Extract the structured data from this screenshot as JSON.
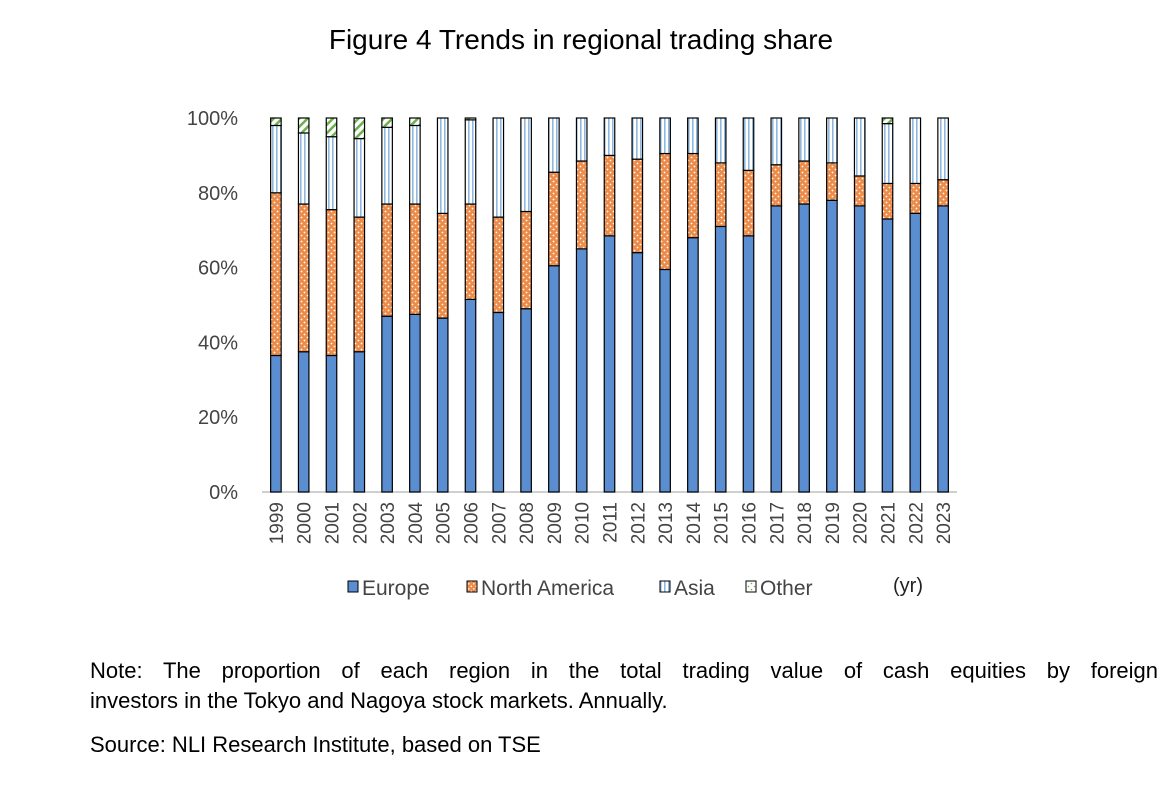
{
  "title": "Figure 4 Trends in regional trading share",
  "note": {
    "line1": "Note: The proportion of each region in the total trading value of cash equities by foreign",
    "line2": "investors in the Tokyo and Nagoya stock markets. Annually."
  },
  "source": "Source: NLI Research Institute, based on TSE",
  "colors": {
    "europe": "#5b8ed0",
    "north_america": "#ec8c4a",
    "asia": "#9fc6ea",
    "other": "#6ab04c"
  },
  "chart_data": {
    "type": "bar",
    "stacked": true,
    "percent": true,
    "title": "Figure 4 Trends in regional trading share",
    "x_unit_label": "(yr)",
    "ylim": [
      0,
      100
    ],
    "yticks": [
      "0%",
      "20%",
      "40%",
      "60%",
      "80%",
      "100%"
    ],
    "categories": [
      "1999",
      "2000",
      "2001",
      "2002",
      "2003",
      "2004",
      "2005",
      "2006",
      "2007",
      "2008",
      "2009",
      "2010",
      "2011",
      "2012",
      "2013",
      "2014",
      "2015",
      "2016",
      "2017",
      "2018",
      "2019",
      "2020",
      "2021",
      "2022",
      "2023"
    ],
    "legend_position": "bottom",
    "series": [
      {
        "name": "Europe",
        "key": "europe",
        "values": [
          36.5,
          37.5,
          36.5,
          37.5,
          47,
          47.5,
          46.5,
          51.5,
          48,
          49,
          60.5,
          65,
          68.5,
          64,
          59.5,
          68,
          71,
          68.5,
          76.5,
          77,
          78,
          76.5,
          73,
          74.5,
          76.5
        ]
      },
      {
        "name": "North America",
        "key": "north_america",
        "values": [
          43.5,
          39.5,
          39,
          36,
          30,
          29.5,
          28,
          25.5,
          25.5,
          26,
          25,
          23.5,
          21.5,
          25,
          31,
          22.5,
          17,
          17.5,
          11,
          11.5,
          10,
          8,
          9.5,
          8,
          7
        ]
      },
      {
        "name": "Asia",
        "key": "asia",
        "values": [
          18,
          19,
          19.5,
          21,
          20.5,
          21,
          25.5,
          22.5,
          26.5,
          25,
          14.5,
          11.5,
          10,
          11,
          9.5,
          9.5,
          12,
          14,
          12.5,
          11.5,
          12,
          15.5,
          16,
          17.5,
          16.5
        ]
      },
      {
        "name": "Other",
        "key": "other",
        "values": [
          2,
          4,
          5,
          5.5,
          2.5,
          2,
          0,
          0.5,
          0,
          0,
          0,
          0,
          0,
          0,
          0,
          0,
          0,
          0,
          0,
          0,
          0,
          0,
          1.5,
          0,
          0
        ]
      }
    ]
  }
}
